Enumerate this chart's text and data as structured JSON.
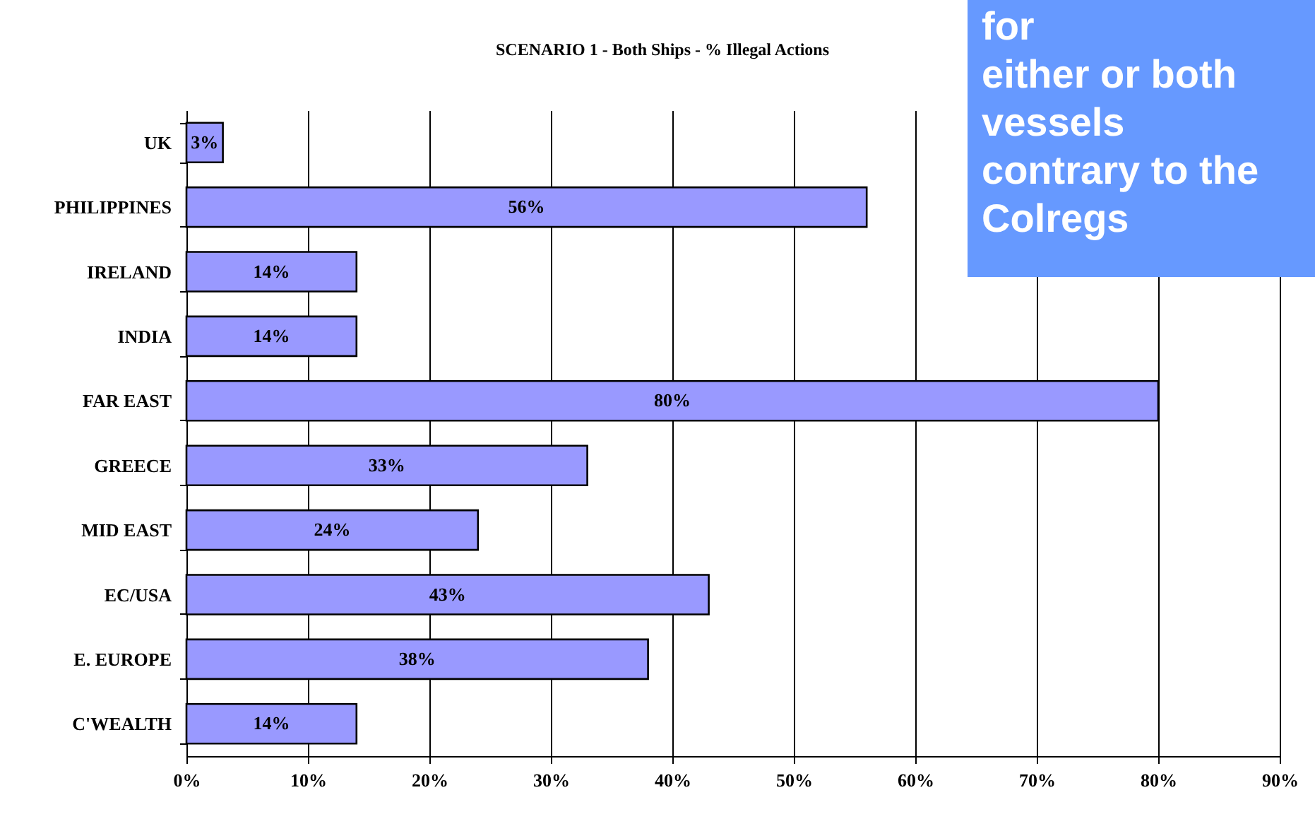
{
  "chart_data": {
    "type": "bar",
    "orientation": "horizontal",
    "title": "SCENARIO 1 - Both Ships - % Illegal Actions",
    "categories": [
      "UK",
      "PHILIPPINES",
      "IRELAND",
      "INDIA",
      "FAR EAST",
      "GREECE",
      "MID EAST",
      "EC/USA",
      "E. EUROPE",
      "C'WEALTH"
    ],
    "values": [
      3,
      56,
      14,
      14,
      80,
      33,
      24,
      43,
      38,
      14
    ],
    "value_labels": [
      "3%",
      "56%",
      "14%",
      "14%",
      "80%",
      "33%",
      "24%",
      "43%",
      "38%",
      "14%"
    ],
    "color": "#9999ff",
    "xlim": [
      0,
      90
    ],
    "xticks": [
      {
        "value": 0,
        "label": "0%"
      },
      {
        "value": 10,
        "label": "10%"
      },
      {
        "value": 20,
        "label": "20%"
      },
      {
        "value": 30,
        "label": "30%"
      },
      {
        "value": 40,
        "label": "40%"
      },
      {
        "value": 50,
        "label": "50%"
      },
      {
        "value": 60,
        "label": "60%"
      },
      {
        "value": 70,
        "label": "70%"
      },
      {
        "value": 80,
        "label": "80%"
      },
      {
        "value": 90,
        "label": "90%"
      }
    ],
    "grid": "x",
    "annotations": [
      "for\neither or both\nvessels\ncontrary to the\nColregs"
    ]
  }
}
